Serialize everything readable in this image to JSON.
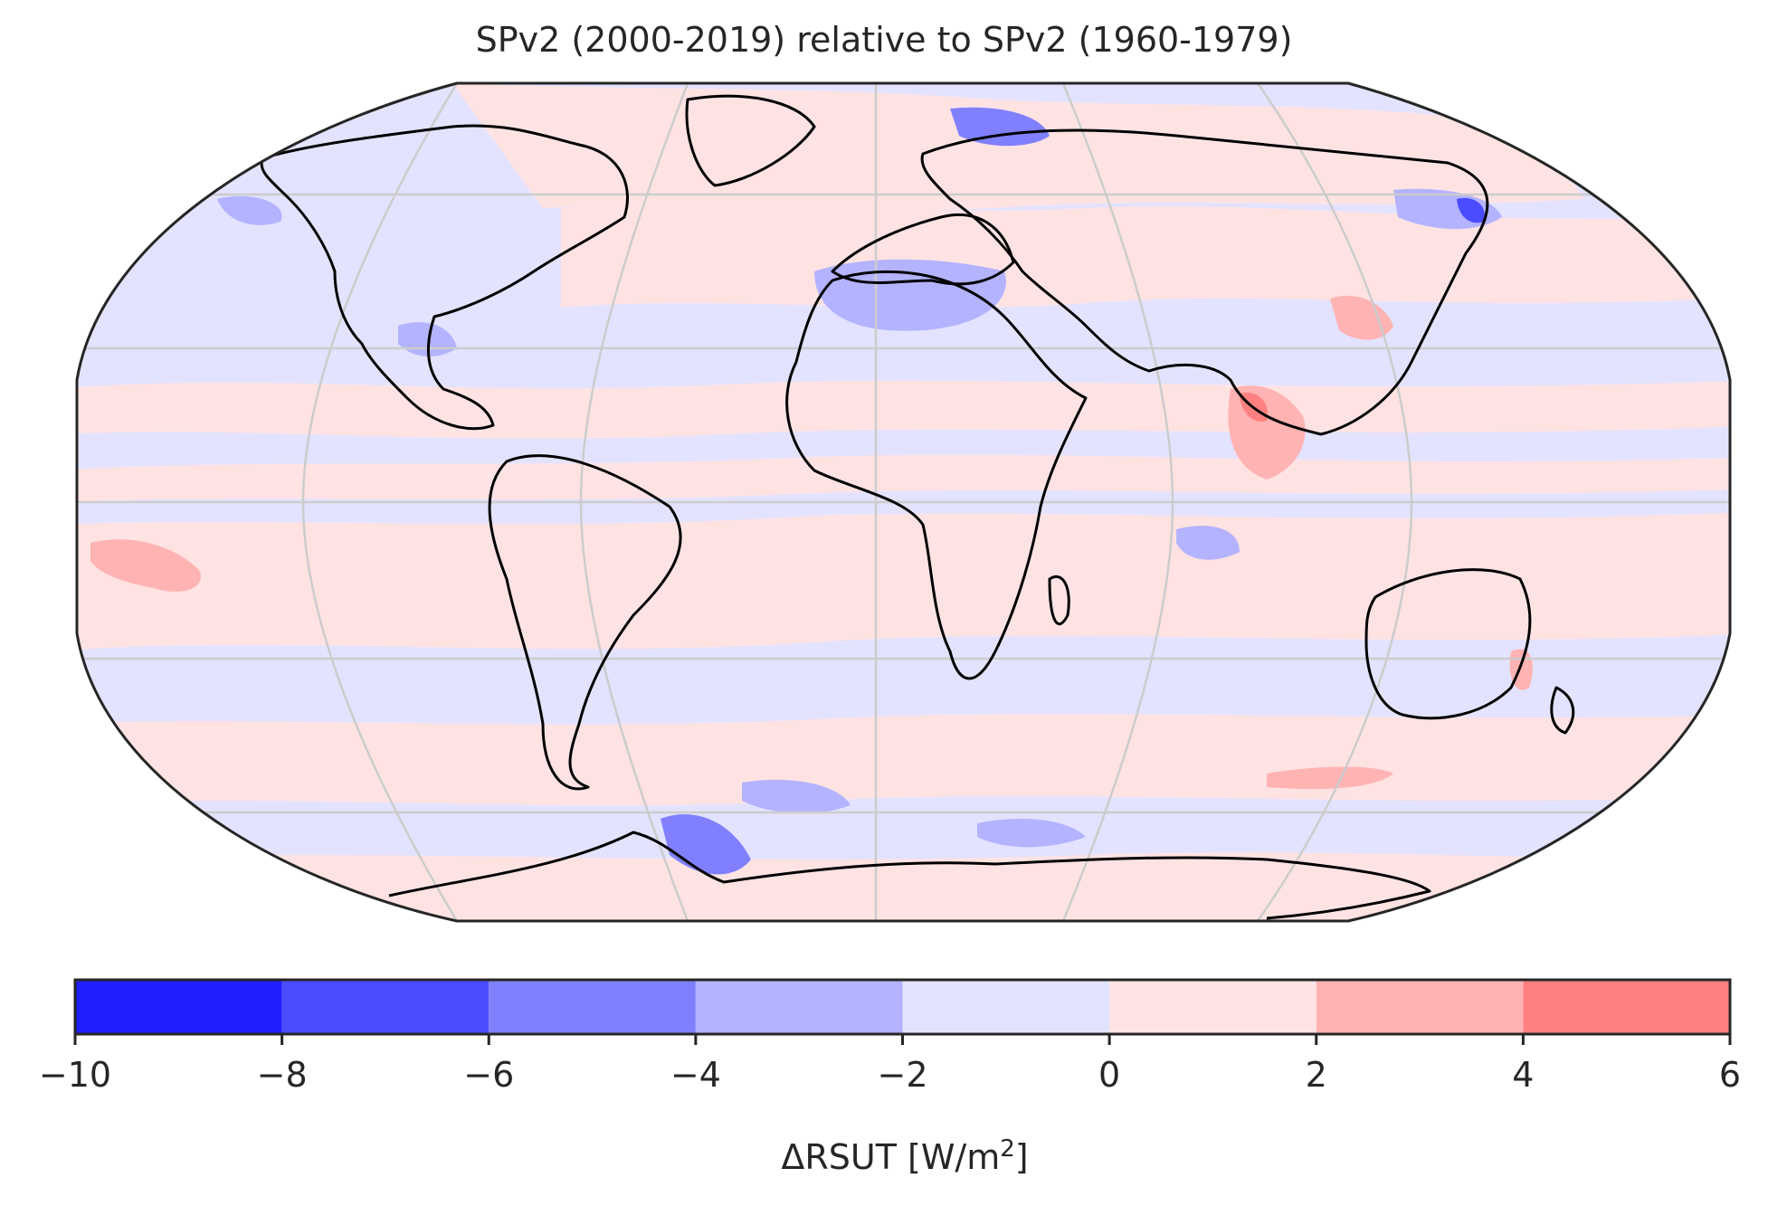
{
  "title": "SPv2 (2000-2019) relative to SPv2 (1960-1979)",
  "map": {
    "projection": "Robinson",
    "land_outline_color": "#000000",
    "graticule_color": "#cccccc",
    "background_field_colors": {
      "light_blue": "#e3e3ff",
      "light_red": "#ffe3e3"
    }
  },
  "colorbar": {
    "boundaries": [
      -10,
      -8,
      -6,
      -4,
      -2,
      0,
      2,
      4,
      6
    ],
    "colors": [
      "#1f1fff",
      "#4c4cff",
      "#8080ff",
      "#b3b3ff",
      "#e3e3ff",
      "#ffe3e3",
      "#ffb3b3",
      "#ff8080"
    ],
    "tick_labels": [
      "−10",
      "−8",
      "−6",
      "−4",
      "−2",
      "0",
      "2",
      "4",
      "6"
    ],
    "label_main": "ΔRSUT [W/m",
    "label_sup": "2",
    "label_end": "]"
  }
}
